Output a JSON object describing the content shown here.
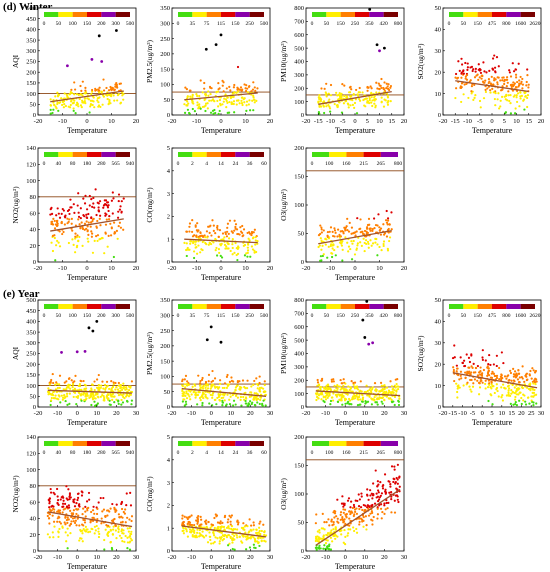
{
  "sections": [
    {
      "label": "(d) Winter"
    },
    {
      "label": "(e) Year"
    }
  ],
  "colors": {
    "scale": [
      "#44dd11",
      "#ffee00",
      "#ff7f00",
      "#dd0000",
      "#8800aa",
      "#7a0000",
      "#000000"
    ],
    "trend_line": "#a0522d",
    "standard_line": "#8b4513"
  },
  "chart_data": [
    {
      "id": "winter-aqi",
      "type": "scatter",
      "section": 0,
      "xlabel": "Temperature",
      "ylabel": "AQI",
      "xlim": [
        -20,
        20
      ],
      "ylim": [
        0,
        500
      ],
      "xticks": [
        "-20",
        "-10",
        "0",
        "10",
        "20"
      ],
      "yticks": [
        "0",
        "50",
        "100",
        "150",
        "200",
        "250",
        "300",
        "350",
        "400",
        "450",
        "500"
      ],
      "legend": [
        "0",
        "50",
        "100",
        "150",
        "200",
        "300",
        "500"
      ],
      "standard_line": 100,
      "trend": [
        [
          -15,
          62
        ],
        [
          15,
          112
        ]
      ],
      "cloud": {
        "x": [
          -15,
          15
        ],
        "center": [
          55,
          110
        ],
        "spread": 30,
        "n": 190
      },
      "highlights": [
        [
          5,
          370
        ],
        [
          12,
          395
        ],
        [
          2,
          260
        ],
        [
          6,
          250
        ],
        [
          -8,
          230
        ]
      ],
      "grid": false
    },
    {
      "id": "winter-pm25",
      "type": "scatter",
      "section": 0,
      "xlabel": "Temperature",
      "ylabel": "PM2.5(ug/m³)",
      "xlim": [
        -20,
        20
      ],
      "ylim": [
        0,
        350
      ],
      "xticks": [
        "-20",
        "-10",
        "0",
        "10",
        "20"
      ],
      "yticks": [
        "0",
        "50",
        "100",
        "150",
        "200",
        "250",
        "300",
        "350"
      ],
      "legend": [
        "0",
        "35",
        "75",
        "115",
        "150",
        "250",
        "500"
      ],
      "standard_line": 75,
      "trend": [
        [
          -15,
          50
        ],
        [
          15,
          72
        ]
      ],
      "cloud": {
        "x": [
          -15,
          15
        ],
        "center": [
          40,
          70
        ],
        "spread": 25,
        "n": 190
      },
      "highlights": [
        [
          0,
          262
        ],
        [
          -2,
          230
        ],
        [
          -6,
          215
        ]
      ],
      "grid": false
    },
    {
      "id": "winter-pm10",
      "type": "scatter",
      "section": 0,
      "xlabel": "Temperature",
      "ylabel": "PM10(ug/m³)",
      "xlim": [
        -20,
        20
      ],
      "ylim": [
        0,
        800
      ],
      "xticks": [
        "-20",
        "-15",
        "-10",
        "-5",
        "0",
        "5",
        "10",
        "15",
        "20"
      ],
      "yticks": [
        "0",
        "100",
        "200",
        "300",
        "400",
        "500",
        "600",
        "700",
        "800"
      ],
      "legend": [
        "0",
        "50",
        "150",
        "250",
        "350",
        "420",
        "800"
      ],
      "standard_line": 150,
      "trend": [
        [
          -15,
          80
        ],
        [
          15,
          175
        ]
      ],
      "cloud": {
        "x": [
          -15,
          15
        ],
        "center": [
          90,
          170
        ],
        "spread": 45,
        "n": 200
      },
      "highlights": [
        [
          9,
          525
        ],
        [
          10,
          480
        ],
        [
          12,
          500
        ],
        [
          6,
          790
        ]
      ],
      "grid": false
    },
    {
      "id": "winter-so2",
      "type": "scatter",
      "section": 0,
      "xlabel": "Temperature",
      "ylabel": "SO2(ug/m³)",
      "xlim": [
        -20,
        20
      ],
      "ylim": [
        0,
        50
      ],
      "xticks": [
        "-20",
        "-15",
        "-10",
        "-5",
        "0",
        "5",
        "10",
        "15",
        "20"
      ],
      "yticks": [
        "0",
        "10",
        "20",
        "30",
        "40",
        "50"
      ],
      "legend": [
        "0",
        "50",
        "150",
        "475",
        "800",
        "1600",
        "2620"
      ],
      "standard_line": null,
      "trend": [
        [
          -15,
          16
        ],
        [
          15,
          11
        ]
      ],
      "cloud": {
        "x": [
          -15,
          15
        ],
        "center": [
          17,
          11
        ],
        "spread": 5,
        "n": 230
      },
      "highlights": [],
      "grid": false
    },
    {
      "id": "winter-no2",
      "type": "scatter",
      "section": 0,
      "xlabel": "Temperature",
      "ylabel": "NO2(ug/m³)",
      "xlim": [
        -20,
        20
      ],
      "ylim": [
        0,
        140
      ],
      "xticks": [
        "-20",
        "-10",
        "0",
        "10",
        "20"
      ],
      "yticks": [
        "0",
        "20",
        "40",
        "60",
        "80",
        "100",
        "120",
        "140"
      ],
      "legend": [
        "0",
        "40",
        "80",
        "180",
        "280",
        "565",
        "940"
      ],
      "standard_line": 80,
      "trend": [
        [
          -15,
          38
        ],
        [
          15,
          53
        ]
      ],
      "cloud": {
        "x": [
          -15,
          15
        ],
        "center": [
          42,
          55
        ],
        "spread": 18,
        "n": 210
      },
      "highlights": [],
      "grid": false
    },
    {
      "id": "winter-co",
      "type": "scatter",
      "section": 0,
      "xlabel": "Temperature",
      "ylabel": "CO(mg/m³)",
      "xlim": [
        -20,
        20
      ],
      "ylim": [
        0,
        5
      ],
      "xticks": [
        "-20",
        "-10",
        "0",
        "10",
        "20"
      ],
      "yticks": [
        "0",
        "1",
        "2",
        "3",
        "4",
        "5"
      ],
      "legend": [
        "0",
        "2",
        "4",
        "14",
        "24",
        "36",
        "60"
      ],
      "standard_line": null,
      "trend": [
        [
          -15,
          1.0
        ],
        [
          15,
          0.85
        ]
      ],
      "cloud": {
        "x": [
          -15,
          15
        ],
        "center": [
          1.0,
          0.85
        ],
        "spread": 0.4,
        "n": 200
      },
      "highlights": [],
      "grid": false
    },
    {
      "id": "winter-o3",
      "type": "scatter",
      "section": 0,
      "xlabel": "Temperature",
      "ylabel": "O3(ug/m³)",
      "xlim": [
        -20,
        20
      ],
      "ylim": [
        0,
        200
      ],
      "xticks": [
        "-20",
        "-10",
        "0",
        "10",
        "20"
      ],
      "yticks": [
        "0",
        "50",
        "100",
        "150",
        "200"
      ],
      "legend": [
        "0",
        "100",
        "160",
        "215",
        "265",
        "800"
      ],
      "standard_line": 160,
      "trend": [
        [
          -15,
          32
        ],
        [
          15,
          55
        ]
      ],
      "cloud": {
        "x": [
          -15,
          15
        ],
        "center": [
          35,
          55
        ],
        "spread": 15,
        "n": 200
      },
      "highlights": [],
      "grid": false
    },
    {
      "id": "year-aqi",
      "type": "scatter",
      "section": 1,
      "xlabel": "Temperature",
      "ylabel": "AQI",
      "xlim": [
        -20,
        30
      ],
      "ylim": [
        0,
        500
      ],
      "xticks": [
        "-20",
        "-10",
        "0",
        "10",
        "20",
        "30"
      ],
      "yticks": [
        "0",
        "50",
        "100",
        "150",
        "200",
        "250",
        "300",
        "350",
        "400",
        "450",
        "500"
      ],
      "legend": [
        "0",
        "50",
        "100",
        "150",
        "200",
        "300",
        "500"
      ],
      "standard_line": 100,
      "trend": [
        [
          -15,
          78
        ],
        [
          28,
          65
        ]
      ],
      "cloud": {
        "x": [
          -15,
          28
        ],
        "center": [
          80,
          60
        ],
        "spread": 30,
        "n": 300
      },
      "highlights": [
        [
          6,
          370
        ],
        [
          8,
          355
        ],
        [
          10,
          400
        ],
        [
          -8,
          255
        ],
        [
          0,
          258
        ],
        [
          4,
          260
        ]
      ],
      "grid": false
    },
    {
      "id": "year-pm25",
      "type": "scatter",
      "section": 1,
      "xlabel": "Temperature",
      "ylabel": "PM2.5(ug/m³)",
      "xlim": [
        -20,
        30
      ],
      "ylim": [
        0,
        350
      ],
      "xticks": [
        "-20",
        "-10",
        "0",
        "10",
        "20",
        "30"
      ],
      "yticks": [
        "0",
        "50",
        "100",
        "150",
        "200",
        "250",
        "300",
        "350"
      ],
      "legend": [
        "0",
        "35",
        "75",
        "115",
        "150",
        "250",
        "500"
      ],
      "standard_line": 75,
      "trend": [
        [
          -15,
          60
        ],
        [
          28,
          35
        ]
      ],
      "cloud": {
        "x": [
          -15,
          28
        ],
        "center": [
          55,
          35
        ],
        "spread": 25,
        "n": 300
      },
      "highlights": [
        [
          0,
          262
        ],
        [
          -2,
          220
        ],
        [
          5,
          212
        ]
      ],
      "grid": false
    },
    {
      "id": "year-pm10",
      "type": "scatter",
      "section": 1,
      "xlabel": "Temperature",
      "ylabel": "PM10(ug/m³)",
      "xlim": [
        -20,
        30
      ],
      "ylim": [
        0,
        800
      ],
      "xticks": [
        "-20",
        "-10",
        "0",
        "10",
        "20",
        "30"
      ],
      "yticks": [
        "0",
        "100",
        "200",
        "300",
        "400",
        "500",
        "600",
        "700",
        "800"
      ],
      "legend": [
        "0",
        "50",
        "150",
        "250",
        "350",
        "420",
        "800"
      ],
      "standard_line": 150,
      "trend": [
        [
          -15,
          120
        ],
        [
          28,
          85
        ]
      ],
      "cloud": {
        "x": [
          -15,
          28
        ],
        "center": [
          120,
          90
        ],
        "spread": 45,
        "n": 320
      },
      "highlights": [
        [
          10,
          520
        ],
        [
          12,
          470
        ],
        [
          14,
          480
        ],
        [
          9,
          650
        ],
        [
          11,
          790
        ]
      ],
      "grid": false
    },
    {
      "id": "year-so2",
      "type": "scatter",
      "section": 1,
      "xlabel": "Temperature",
      "ylabel": "SO2(ug/m³)",
      "xlim": [
        -20,
        30
      ],
      "ylim": [
        0,
        50
      ],
      "xticks": [
        "-20",
        "-15",
        "-10",
        "-5",
        "0",
        "5",
        "10",
        "15",
        "20",
        "25",
        "30"
      ],
      "yticks": [
        "0",
        "10",
        "20",
        "30",
        "40",
        "50"
      ],
      "legend": [
        "0",
        "50",
        "150",
        "475",
        "800",
        "1600",
        "2620"
      ],
      "standard_line": null,
      "trend": [
        [
          -15,
          16
        ],
        [
          28,
          9
        ]
      ],
      "cloud": {
        "x": [
          -15,
          28
        ],
        "center": [
          17,
          9
        ],
        "spread": 5,
        "n": 320
      },
      "highlights": [],
      "grid": false
    },
    {
      "id": "year-no2",
      "type": "scatter",
      "section": 1,
      "xlabel": "Temperature",
      "ylabel": "NO2(ug/m³)",
      "xlim": [
        -20,
        30
      ],
      "ylim": [
        0,
        140
      ],
      "xticks": [
        "-20",
        "-10",
        "0",
        "10",
        "20",
        "30"
      ],
      "yticks": [
        "0",
        "20",
        "40",
        "60",
        "80",
        "100",
        "120",
        "140"
      ],
      "legend": [
        "0",
        "40",
        "80",
        "180",
        "280",
        "565",
        "940"
      ],
      "standard_line": 80,
      "trend": [
        [
          -15,
          48
        ],
        [
          28,
          30
        ]
      ],
      "cloud": {
        "x": [
          -15,
          28
        ],
        "center": [
          50,
          30
        ],
        "spread": 15,
        "n": 320
      },
      "highlights": [],
      "grid": false
    },
    {
      "id": "year-co",
      "type": "scatter",
      "section": 1,
      "xlabel": "Temperature",
      "ylabel": "CO(mg/m³)",
      "xlim": [
        -20,
        30
      ],
      "ylim": [
        0,
        5
      ],
      "xticks": [
        "-20",
        "-10",
        "0",
        "10",
        "20",
        "30"
      ],
      "yticks": [
        "0",
        "1",
        "2",
        "3",
        "4",
        "5"
      ],
      "legend": [
        "0",
        "2",
        "4",
        "14",
        "24",
        "36",
        "60"
      ],
      "standard_line": null,
      "trend": [
        [
          -15,
          1.1
        ],
        [
          28,
          0.62
        ]
      ],
      "cloud": {
        "x": [
          -15,
          28
        ],
        "center": [
          1.1,
          0.62
        ],
        "spread": 0.3,
        "n": 300
      },
      "highlights": [],
      "grid": false
    },
    {
      "id": "year-o3",
      "type": "scatter",
      "section": 1,
      "xlabel": "Temperature",
      "ylabel": "O3(ug/m³)",
      "xlim": [
        -20,
        30
      ],
      "ylim": [
        0,
        200
      ],
      "xticks": [
        "-20",
        "-10",
        "0",
        "10",
        "20",
        "30"
      ],
      "yticks": [
        "0",
        "50",
        "100",
        "150",
        "200"
      ],
      "legend": [
        "0",
        "100",
        "160",
        "215",
        "265",
        "800"
      ],
      "standard_line": 160,
      "trend": [
        [
          -15,
          10
        ],
        [
          28,
          108
        ]
      ],
      "cloud": {
        "x": [
          -15,
          28
        ],
        "center": [
          15,
          120
        ],
        "spread": 20,
        "n": 320
      },
      "highlights": [],
      "grid": false
    }
  ]
}
